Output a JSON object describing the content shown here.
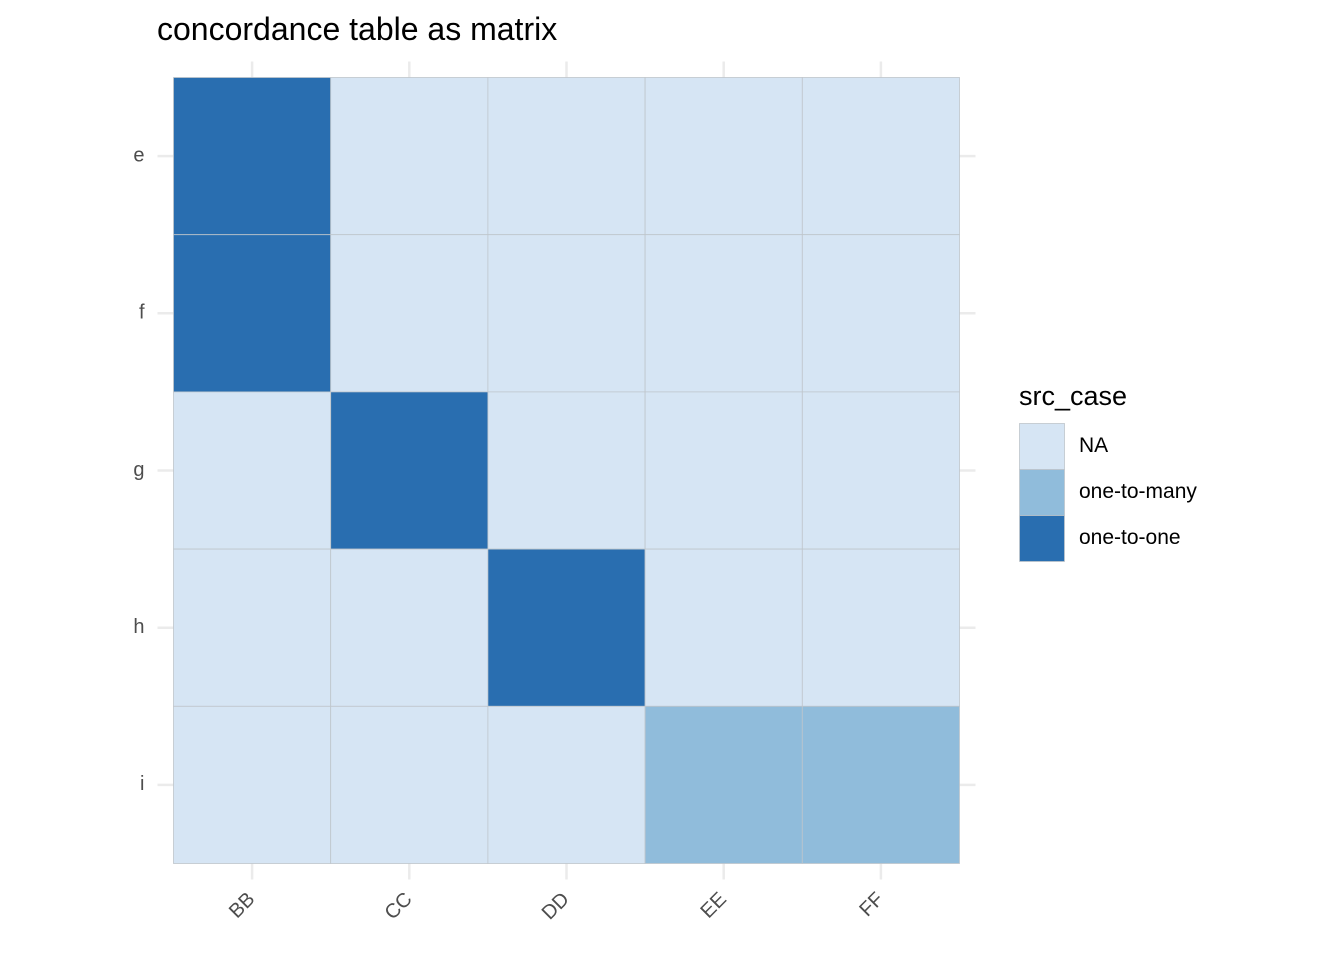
{
  "chart_data": {
    "type": "heatmap",
    "title": "concordance table as matrix",
    "xlabel": "",
    "ylabel": "",
    "x_categories": [
      "BB",
      "CC",
      "DD",
      "EE",
      "FF"
    ],
    "y_categories": [
      "e",
      "f",
      "g",
      "h",
      "i"
    ],
    "cells": [
      [
        "one-to-one",
        "NA",
        "NA",
        "NA",
        "NA"
      ],
      [
        "one-to-one",
        "NA",
        "NA",
        "NA",
        "NA"
      ],
      [
        "NA",
        "one-to-one",
        "NA",
        "NA",
        "NA"
      ],
      [
        "NA",
        "NA",
        "one-to-one",
        "NA",
        "NA"
      ],
      [
        "NA",
        "NA",
        "NA",
        "one-to-many",
        "one-to-many"
      ]
    ],
    "legend": {
      "title": "src_case",
      "position": "right",
      "entries": [
        {
          "label": "NA",
          "color": "#d6e5f4"
        },
        {
          "label": "one-to-many",
          "color": "#90bcdb"
        },
        {
          "label": "one-to-one",
          "color": "#296eb0"
        }
      ]
    },
    "x_tick_rotation_deg": 45,
    "grid": true,
    "colors": {
      "grid": "#ebebeb",
      "cell_border": "#bfc5cb",
      "tick_text": "#4d4d4d"
    }
  }
}
